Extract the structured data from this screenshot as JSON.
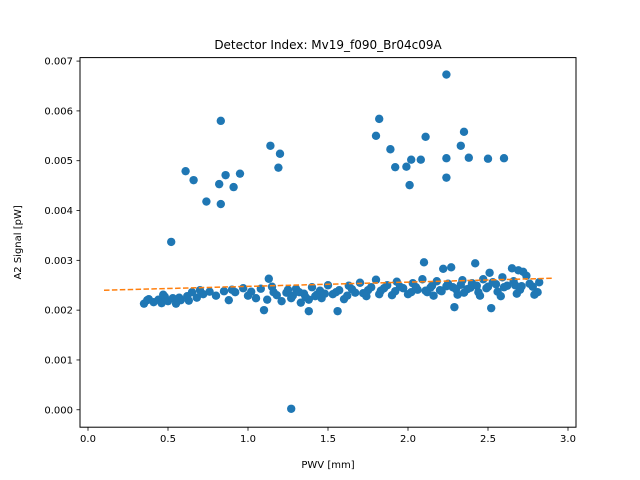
{
  "chart_data": {
    "type": "scatter",
    "title": "Detector Index: Mv19_f090_Br04c09A",
    "xlabel": "PWV [mm]",
    "ylabel": "A2 Signal [pW]",
    "xlim": [
      -0.05,
      3.05
    ],
    "ylim": [
      -0.00035,
      0.00707
    ],
    "xticks": [
      0.0,
      0.5,
      1.0,
      1.5,
      2.0,
      2.5,
      3.0
    ],
    "xtick_labels": [
      "0.0",
      "0.5",
      "1.0",
      "1.5",
      "2.0",
      "2.5",
      "3.0"
    ],
    "yticks": [
      0.0,
      0.001,
      0.002,
      0.003,
      0.004,
      0.005,
      0.006,
      0.007
    ],
    "ytick_labels": [
      "0.000",
      "0.001",
      "0.002",
      "0.003",
      "0.004",
      "0.005",
      "0.006",
      "0.007"
    ],
    "colors": {
      "points": "#1f77b4",
      "fit": "#ff7f0e"
    },
    "series": [
      {
        "name": "measurements",
        "kind": "scatter",
        "points": [
          [
            2.24,
            0.00673
          ],
          [
            1.82,
            0.00584
          ],
          [
            0.83,
            0.0058
          ],
          [
            1.8,
            0.0055
          ],
          [
            2.11,
            0.00548
          ],
          [
            2.35,
            0.00558
          ],
          [
            1.14,
            0.0053
          ],
          [
            1.89,
            0.00523
          ],
          [
            2.33,
            0.0053
          ],
          [
            1.2,
            0.00514
          ],
          [
            2.24,
            0.00505
          ],
          [
            2.02,
            0.00502
          ],
          [
            2.08,
            0.00502
          ],
          [
            2.38,
            0.00506
          ],
          [
            2.5,
            0.00504
          ],
          [
            2.6,
            0.00505
          ],
          [
            1.92,
            0.00487
          ],
          [
            1.99,
            0.00488
          ],
          [
            1.19,
            0.00486
          ],
          [
            0.61,
            0.00479
          ],
          [
            0.95,
            0.00474
          ],
          [
            0.86,
            0.00471
          ],
          [
            0.66,
            0.00461
          ],
          [
            2.24,
            0.00466
          ],
          [
            0.82,
            0.00453
          ],
          [
            0.91,
            0.00447
          ],
          [
            2.01,
            0.00451
          ],
          [
            0.74,
            0.00418
          ],
          [
            0.83,
            0.00413
          ],
          [
            0.52,
            0.00337
          ],
          [
            2.1,
            0.00296
          ],
          [
            2.27,
            0.00286
          ],
          [
            2.42,
            0.00294
          ],
          [
            2.65,
            0.00284
          ],
          [
            2.69,
            0.0028
          ],
          [
            1.13,
            0.00263
          ],
          [
            2.22,
            0.00283
          ],
          [
            2.51,
            0.00275
          ],
          [
            2.72,
            0.00277
          ],
          [
            1.27,
            2e-05
          ],
          [
            1.38,
            0.00198
          ],
          [
            1.56,
            0.00198
          ],
          [
            2.29,
            0.00206
          ],
          [
            2.52,
            0.00204
          ],
          [
            1.1,
            0.002
          ],
          [
            0.35,
            0.00213
          ],
          [
            0.38,
            0.00222
          ],
          [
            0.41,
            0.00216
          ],
          [
            0.44,
            0.00221
          ],
          [
            0.46,
            0.00214
          ],
          [
            0.48,
            0.00227
          ],
          [
            0.5,
            0.00218
          ],
          [
            0.53,
            0.00224
          ],
          [
            0.55,
            0.00213
          ],
          [
            0.58,
            0.0022
          ],
          [
            0.62,
            0.00228
          ],
          [
            0.65,
            0.00236
          ],
          [
            0.68,
            0.00225
          ],
          [
            0.72,
            0.00232
          ],
          [
            0.8,
            0.00229
          ],
          [
            0.85,
            0.00238
          ],
          [
            0.88,
            0.0022
          ],
          [
            0.92,
            0.00236
          ],
          [
            0.97,
            0.00244
          ],
          [
            1.02,
            0.00237
          ],
          [
            1.05,
            0.00224
          ],
          [
            1.08,
            0.00243
          ],
          [
            1.12,
            0.00221
          ],
          [
            1.15,
            0.00247
          ],
          [
            1.18,
            0.0023
          ],
          [
            1.21,
            0.00218
          ],
          [
            1.24,
            0.00235
          ],
          [
            1.27,
            0.00224
          ],
          [
            1.3,
            0.00243
          ],
          [
            1.33,
            0.00215
          ],
          [
            1.36,
            0.00226
          ],
          [
            1.4,
            0.00246
          ],
          [
            1.43,
            0.00231
          ],
          [
            1.46,
            0.00224
          ],
          [
            1.5,
            0.0025
          ],
          [
            1.53,
            0.00232
          ],
          [
            1.57,
            0.0024
          ],
          [
            1.6,
            0.00222
          ],
          [
            1.63,
            0.00249
          ],
          [
            1.67,
            0.00235
          ],
          [
            1.7,
            0.00255
          ],
          [
            1.74,
            0.00228
          ],
          [
            1.77,
            0.00246
          ],
          [
            1.8,
            0.00261
          ],
          [
            1.83,
            0.00239
          ],
          [
            1.87,
            0.0025
          ],
          [
            1.9,
            0.0023
          ],
          [
            1.93,
            0.00257
          ],
          [
            1.97,
            0.00244
          ],
          [
            2.0,
            0.00232
          ],
          [
            2.03,
            0.00254
          ],
          [
            2.06,
            0.00241
          ],
          [
            2.09,
            0.00262
          ],
          [
            2.12,
            0.00236
          ],
          [
            2.15,
            0.00249
          ],
          [
            2.18,
            0.00258
          ],
          [
            2.21,
            0.00238
          ],
          [
            2.25,
            0.00253
          ],
          [
            2.28,
            0.00246
          ],
          [
            2.31,
            0.00231
          ],
          [
            2.34,
            0.0026
          ],
          [
            2.37,
            0.00242
          ],
          [
            2.4,
            0.00254
          ],
          [
            2.44,
            0.00236
          ],
          [
            2.47,
            0.00262
          ],
          [
            2.5,
            0.00247
          ],
          [
            2.53,
            0.00256
          ],
          [
            2.56,
            0.00237
          ],
          [
            2.59,
            0.00266
          ],
          [
            2.62,
            0.00249
          ],
          [
            2.66,
            0.00258
          ],
          [
            2.7,
            0.00241
          ],
          [
            2.74,
            0.00269
          ],
          [
            2.78,
            0.00247
          ],
          [
            2.81,
            0.00236
          ],
          [
            2.82,
            0.00256
          ],
          [
            0.37,
            0.0022
          ],
          [
            0.47,
            0.00231
          ],
          [
            0.57,
            0.00225
          ],
          [
            0.63,
            0.00219
          ],
          [
            0.7,
            0.0024
          ],
          [
            0.76,
            0.00237
          ],
          [
            0.9,
            0.00241
          ],
          [
            1.0,
            0.00229
          ],
          [
            1.16,
            0.00236
          ],
          [
            1.25,
            0.00241
          ],
          [
            1.35,
            0.00233
          ],
          [
            1.45,
            0.00239
          ],
          [
            1.55,
            0.00236
          ],
          [
            1.65,
            0.00242
          ],
          [
            1.75,
            0.0024
          ],
          [
            1.85,
            0.00244
          ],
          [
            1.95,
            0.00247
          ],
          [
            2.05,
            0.00246
          ],
          [
            2.14,
            0.00245
          ],
          [
            2.24,
            0.00248
          ],
          [
            2.33,
            0.00251
          ],
          [
            2.43,
            0.00249
          ],
          [
            2.55,
            0.00252
          ],
          [
            2.67,
            0.0025
          ],
          [
            2.76,
            0.00253
          ],
          [
            1.42,
            0.00228
          ],
          [
            1.48,
            0.00233
          ],
          [
            1.62,
            0.00229
          ],
          [
            1.72,
            0.00234
          ],
          [
            1.82,
            0.00232
          ],
          [
            1.92,
            0.00238
          ],
          [
            2.02,
            0.00236
          ],
          [
            2.11,
            0.00239
          ],
          [
            2.2,
            0.0024
          ],
          [
            2.3,
            0.00242
          ],
          [
            2.39,
            0.00245
          ],
          [
            2.49,
            0.00244
          ],
          [
            2.6,
            0.00246
          ],
          [
            2.71,
            0.00248
          ],
          [
            1.28,
            0.00229
          ],
          [
            1.32,
            0.00236
          ],
          [
            1.38,
            0.00221
          ],
          [
            2.16,
            0.00229
          ],
          [
            2.35,
            0.00235
          ],
          [
            2.45,
            0.00229
          ],
          [
            2.58,
            0.00228
          ],
          [
            2.68,
            0.00233
          ],
          [
            2.79,
            0.00231
          ]
        ]
      },
      {
        "name": "linear fit",
        "kind": "dashed-line",
        "x": [
          0.1,
          2.9
        ],
        "y": [
          0.0024,
          0.00264
        ]
      }
    ]
  }
}
